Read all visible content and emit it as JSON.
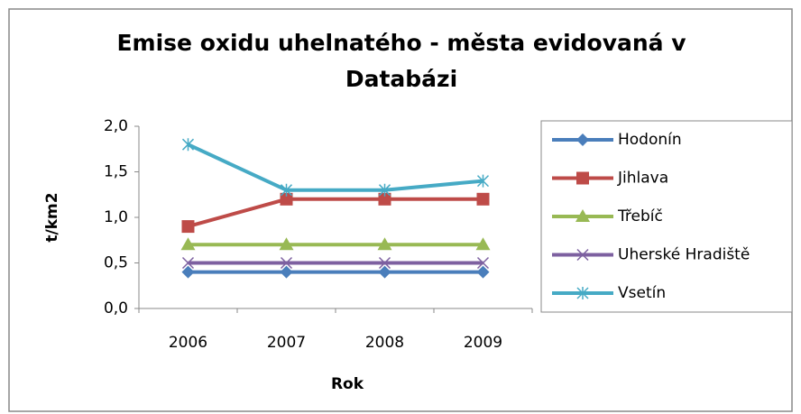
{
  "chart_data": {
    "type": "line",
    "title": "Emise oxidu uhelnatého - města evidovaná v Databázi",
    "x_label": "Rok",
    "y_label": "t/km2",
    "categories": [
      "2006",
      "2007",
      "2008",
      "2009"
    ],
    "ylim": [
      0,
      2
    ],
    "yticks": [
      {
        "value": 0,
        "label": "0,0"
      },
      {
        "value": 0.5,
        "label": "0,5"
      },
      {
        "value": 1,
        "label": "1,0"
      },
      {
        "value": 1.5,
        "label": "1,5"
      },
      {
        "value": 2,
        "label": "2,0"
      }
    ],
    "grid": false,
    "legend": "right",
    "series": [
      {
        "name": "Hodonín",
        "color": "#4a7ebb",
        "marker": "diamond",
        "values": [
          0.4,
          0.4,
          0.4,
          0.4
        ]
      },
      {
        "name": "Jihlava",
        "color": "#be4b48",
        "marker": "square",
        "values": [
          0.9,
          1.2,
          1.2,
          1.2
        ]
      },
      {
        "name": "Třebíč",
        "color": "#98b954",
        "marker": "triangle",
        "values": [
          0.7,
          0.7,
          0.7,
          0.7
        ]
      },
      {
        "name": "Uherské Hradiště",
        "color": "#7d60a0",
        "marker": "x",
        "values": [
          0.5,
          0.5,
          0.5,
          0.5
        ]
      },
      {
        "name": "Vsetín",
        "color": "#46aac5",
        "marker": "star",
        "values": [
          1.8,
          1.3,
          1.3,
          1.4
        ]
      }
    ]
  }
}
